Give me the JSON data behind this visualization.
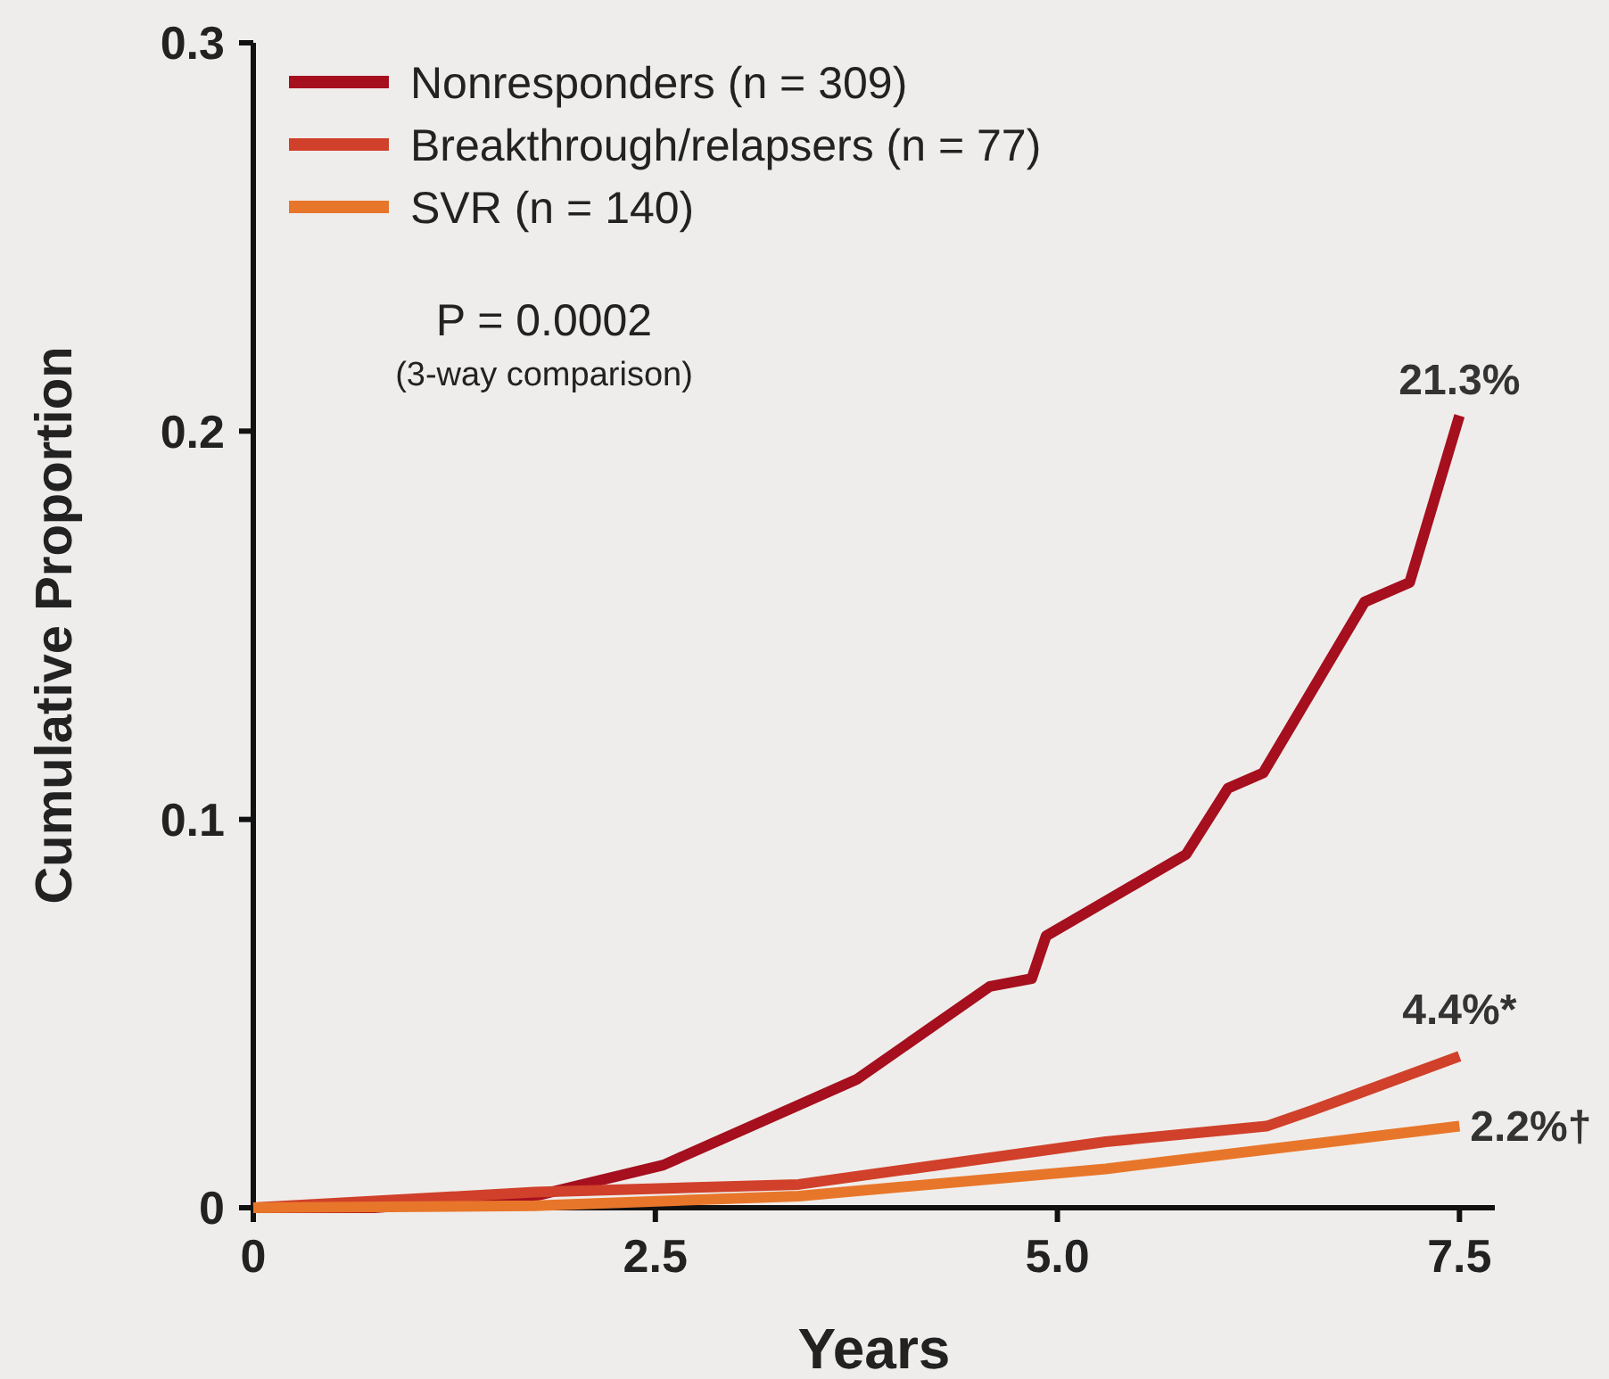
{
  "chart_data": {
    "type": "line",
    "xlabel": "Years",
    "ylabel": "Cumulative Proportion",
    "xlim": [
      0,
      7.72
    ],
    "ylim": [
      0,
      0.3
    ],
    "xticks": [
      0,
      2.5,
      {
        "value": 5,
        "label": "5.0"
      },
      7.5
    ],
    "yticks": [
      0,
      0.1,
      0.2,
      0.3
    ],
    "grid": false,
    "legend": "top left",
    "marker": "none",
    "line_style": "solid",
    "series": [
      {
        "name": "Nonresponders (n = 309)",
        "color": "#a50f1e",
        "x": [
          0,
          0.75,
          1.75,
          2.55,
          3.75,
          4.58,
          4.84,
          4.93,
          5.8,
          6.06,
          6.28,
          6.91,
          7.19,
          7.5
        ],
        "values": [
          0,
          0,
          0.003,
          0.011,
          0.033,
          0.057,
          0.059,
          0.07,
          0.091,
          0.108,
          0.112,
          0.156,
          0.161,
          0.204
        ]
      },
      {
        "name": "Breakthrough/relapsers (n = 77)",
        "color": "#d0402a",
        "x": [
          0,
          1.75,
          3.39,
          5.3,
          6.3,
          6.58,
          7.5
        ],
        "values": [
          0,
          0.004,
          0.006,
          0.017,
          0.021,
          0.025,
          0.039
        ]
      },
      {
        "name": "SVR (n = 140)",
        "color": "#e8762a",
        "x": [
          0,
          1.75,
          3.39,
          5.3,
          7.5
        ],
        "values": [
          0,
          0.0005,
          0.003,
          0.01,
          0.021
        ]
      }
    ],
    "annotations": [
      "P = 0.0002",
      "(3-way comparison)",
      "21.3%",
      "4.4%*",
      "2.2%†"
    ]
  }
}
